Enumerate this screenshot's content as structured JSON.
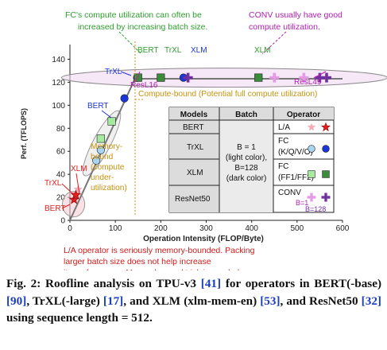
{
  "chart_data": {
    "type": "scatter",
    "xlabel": "Operation Intensity (FLOP/Byte)",
    "ylabel": "Perf. (TFLOPS)",
    "xlim": [
      0,
      600
    ],
    "ylim": [
      0,
      150
    ],
    "xticks": [
      0,
      100,
      200,
      300,
      400,
      500,
      600
    ],
    "yticks": [
      0,
      20,
      40,
      60,
      80,
      100,
      120,
      140
    ],
    "roofline": {
      "ridge_x": 143,
      "peak_y": 123
    },
    "series": [
      {
        "name": "L/A",
        "marker": "star",
        "color_light": "#f6a9b6",
        "color_dark": "#e0201f",
        "points_light": [
          {
            "x": 14,
            "y": 23
          },
          {
            "x": 18,
            "y": 27
          }
        ],
        "points_dark": [
          {
            "x": 9,
            "y": 18
          },
          {
            "x": 13,
            "y": 22
          }
        ]
      },
      {
        "name": "FC (K/Q/V/O)",
        "marker": "circle",
        "color_light": "#a7d5ef",
        "color_dark": "#1c35d6",
        "points_light": [
          {
            "x": 58,
            "y": 52
          },
          {
            "x": 68,
            "y": 61
          }
        ],
        "points_dark": [
          {
            "x": 120,
            "y": 106
          },
          {
            "x": 148,
            "y": 124
          },
          {
            "x": 250,
            "y": 124
          }
        ]
      },
      {
        "name": "FC (FF1/FF2)",
        "marker": "square",
        "color_light": "#a6eaa0",
        "color_dark": "#3a8c3a",
        "points_light": [
          {
            "x": 68,
            "y": 71
          },
          {
            "x": 92,
            "y": 86
          }
        ],
        "points_dark": [
          {
            "x": 150,
            "y": 124
          },
          {
            "x": 200,
            "y": 124
          },
          {
            "x": 415,
            "y": 124
          }
        ]
      },
      {
        "name": "CONV",
        "marker": "cross",
        "color_light": "#e59ae5",
        "color_dark": "#7030a0",
        "points_light": [
          {
            "x": 450,
            "y": 124
          },
          {
            "x": 515,
            "y": 124
          }
        ],
        "points_dark": [
          {
            "x": 260,
            "y": 124
          },
          {
            "x": 550,
            "y": 124
          },
          {
            "x": 565,
            "y": 124
          }
        ]
      }
    ]
  },
  "annotations": {
    "fc_note": "FC's compute utilization can often be increased by increasing batch size.",
    "conv_note": "CONV usually have good compute utilization.",
    "compute_bound": "Compute-bound (Potential full compute utilization)",
    "memory_bound": "Memory-bound (compute under-utilization)",
    "la_note": "L/A operator is seriously memory-bounded. Packing larger batch size does not help increase its performance. More advanced trick is needed.",
    "labels": {
      "bert_top": "BERT",
      "trxl_top": "TrXL",
      "xlm_top": "XLM",
      "xlm_right": "XLM",
      "trxl_left": "TrXL",
      "resl16": "ResL16",
      "bert_mid": "BERT",
      "resl49": "ResL49",
      "xlm_low": "XLM",
      "trxl_low": "TrXL",
      "bert_low": "BERT"
    }
  },
  "legend_table": {
    "headers": [
      "Models",
      "Batch",
      "Operator"
    ],
    "models": [
      "BERT",
      "TrXL",
      "XLM",
      "ResNet50"
    ],
    "batch": [
      "B = 1",
      "(light color),",
      "B=128",
      "(dark color)"
    ],
    "operators": [
      {
        "label": "L/A",
        "lines": [
          "L/A"
        ]
      },
      {
        "label": "FC (K/Q/V/O)",
        "lines": [
          "FC",
          "(K/Q/V/O)"
        ]
      },
      {
        "label": "FC (FF1/FF2)",
        "lines": [
          "FC",
          "(FF1/FF2)"
        ]
      },
      {
        "label": "CONV",
        "lines": [
          "CONV"
        ]
      }
    ],
    "conv_batch_light": "B=1",
    "conv_batch_dark": "B=128"
  },
  "caption": {
    "line1_a": "Fig. 2: Roofline analysis on TPU-v3 ",
    "ref41": "[41]",
    "line1_b": " for operators in BERT(-base) ",
    "ref90": "[90]",
    "line2_a": ", TrXL(-large) ",
    "ref17": "[17]",
    "line2_b": ", and XLM (xlm-mem-en) ",
    "ref53": "[53]",
    "line3_a": ", and ResNet50 ",
    "ref32": "[32]",
    "line3_b": " using sequence length = 512."
  }
}
